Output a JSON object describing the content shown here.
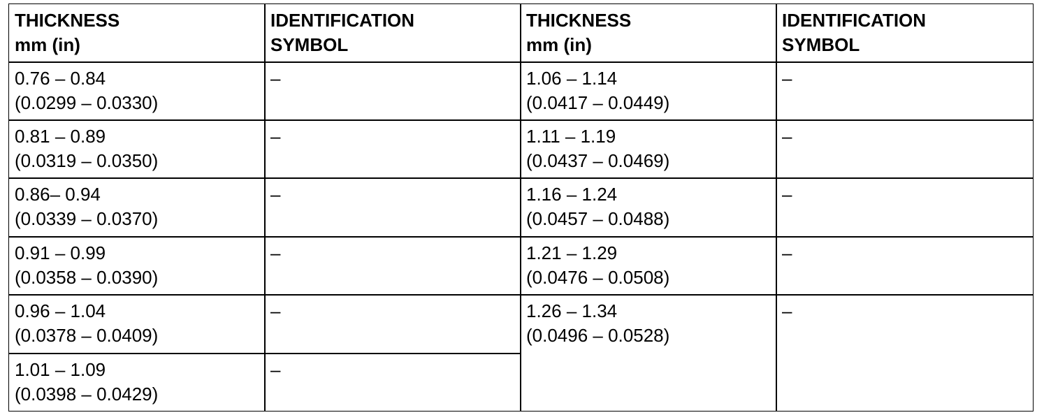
{
  "table": {
    "header": [
      [
        "THICKNESS",
        "mm (in)"
      ],
      [
        "IDENTIFICATION",
        "SYMBOL"
      ],
      [
        "THICKNESS",
        "mm (in)"
      ],
      [
        "IDENTIFICATION",
        "SYMBOL"
      ]
    ],
    "left_rows": [
      {
        "thickness": [
          "0.76 – 0.84",
          "(0.0299 – 0.0330)"
        ],
        "symbol": "–"
      },
      {
        "thickness": [
          "0.81 – 0.89",
          "(0.0319 – 0.0350)"
        ],
        "symbol": "–"
      },
      {
        "thickness": [
          "0.86– 0.94",
          "(0.0339 – 0.0370)"
        ],
        "symbol": "–"
      },
      {
        "thickness": [
          "0.91 – 0.99",
          "(0.0358 – 0.0390)"
        ],
        "symbol": "–"
      },
      {
        "thickness": [
          "0.96 – 1.04",
          "(0.0378 – 0.0409)"
        ],
        "symbol": "–"
      },
      {
        "thickness": [
          "1.01 – 1.09",
          "(0.0398 – 0.0429)"
        ],
        "symbol": "–"
      }
    ],
    "right_rows": [
      {
        "thickness": [
          "1.06 – 1.14",
          "(0.0417 – 0.0449)"
        ],
        "symbol": "–"
      },
      {
        "thickness": [
          "1.11 – 1.19",
          "(0.0437 – 0.0469)"
        ],
        "symbol": "–"
      },
      {
        "thickness": [
          "1.16 – 1.24",
          "(0.0457 – 0.0488)"
        ],
        "symbol": "–"
      },
      {
        "thickness": [
          "1.21 – 1.29",
          "(0.0476 – 0.0508)"
        ],
        "symbol": "–"
      },
      {
        "thickness": [
          "1.26 – 1.34",
          "(0.0496 – 0.0528)"
        ],
        "symbol": "–"
      }
    ]
  }
}
